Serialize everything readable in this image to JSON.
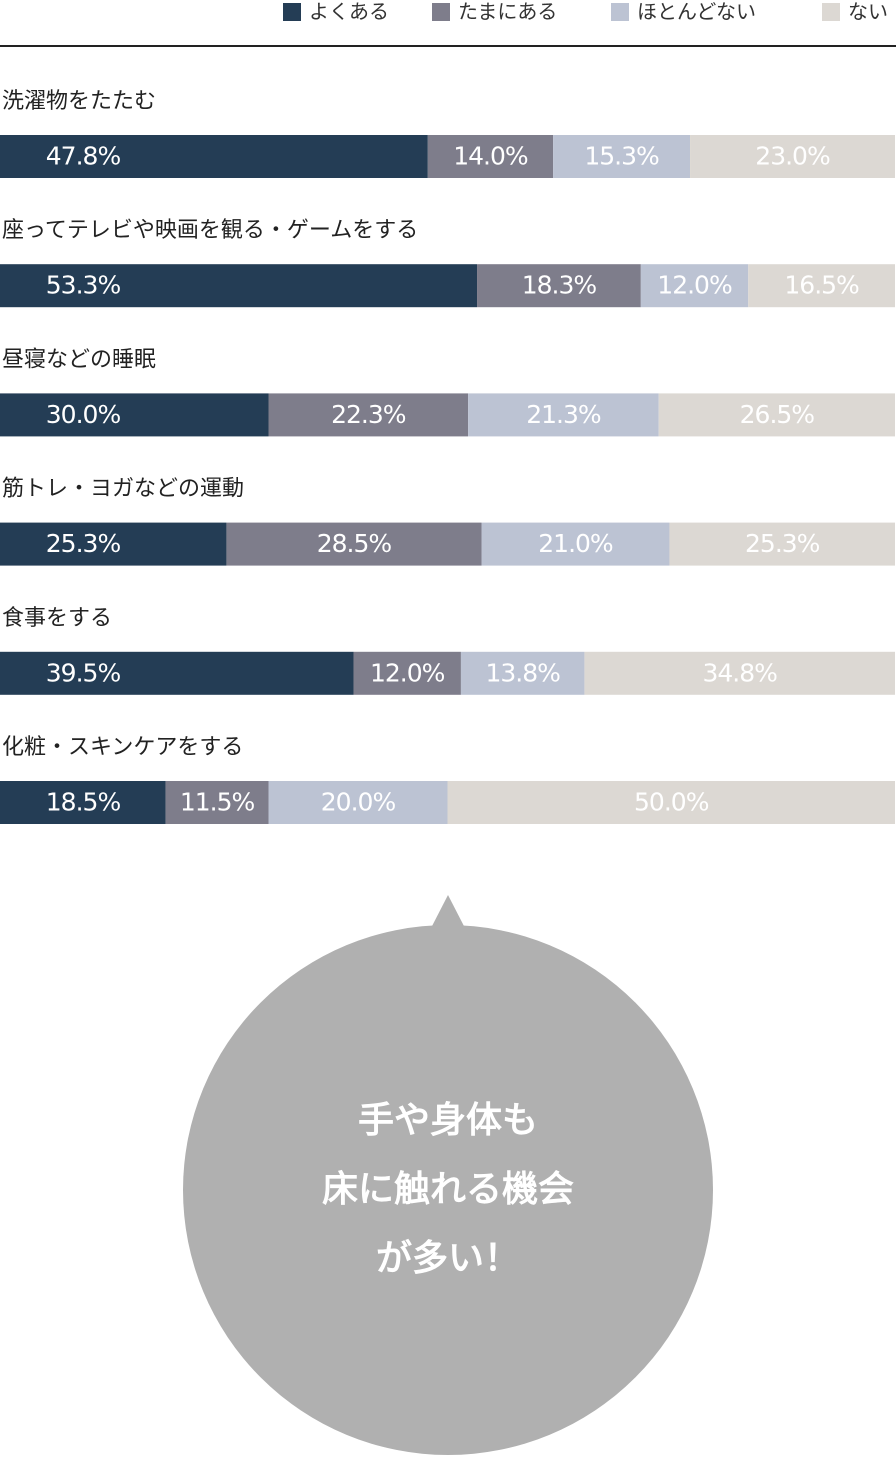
{
  "chart_data": {
    "type": "stacked-bar-100",
    "categories": [
      "洗濯物をたたむ",
      "座ってテレビや映画を観る・ゲームをする",
      "昼寝などの睡眠",
      "筋トレ・ヨガなどの運動",
      "食事をする",
      "化粧・スキンケアをする"
    ],
    "series": [
      {
        "name": "よくある",
        "color": "#243d55",
        "values": [
          47.8,
          53.3,
          30.0,
          25.3,
          39.5,
          18.5
        ],
        "value_labels": [
          "47.8%",
          "53.3%",
          "30.0%",
          "25.3%",
          "39.5%",
          "18.5%"
        ]
      },
      {
        "name": "たまにある",
        "color": "#7e7d8b",
        "values": [
          14.0,
          18.3,
          22.3,
          28.5,
          12.0,
          11.5
        ],
        "value_labels": [
          "14.0%",
          "18.3%",
          "22.3%",
          "28.5%",
          "12.0%",
          "11.5%"
        ]
      },
      {
        "name": "ほとんどない",
        "color": "#bcc3d3",
        "values": [
          15.3,
          12.0,
          21.3,
          21.0,
          13.8,
          20.0
        ],
        "value_labels": [
          "15.3%",
          "12.0%",
          "21.3%",
          "21.0%",
          "13.8%",
          "20.0%"
        ]
      },
      {
        "name": "ない",
        "color": "#dcd8d3",
        "values": [
          23.0,
          16.5,
          26.5,
          25.3,
          34.8,
          50.0
        ],
        "value_labels": [
          "23.0%",
          "16.5%",
          "26.5%",
          "25.3%",
          "34.8%",
          "50.0%"
        ]
      }
    ],
    "xlim": [
      0,
      100
    ],
    "legend": "top-right",
    "annotation": [
      "手や身体も",
      "床に触れる機会",
      "が多い！"
    ]
  }
}
